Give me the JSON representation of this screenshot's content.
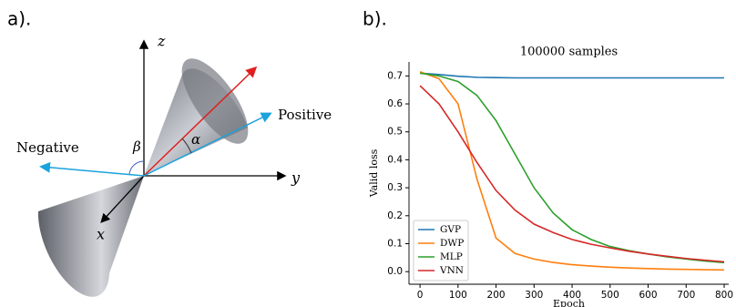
{
  "diagram": {
    "panel_label": "a).",
    "axis_z": "z",
    "axis_y": "y",
    "axis_x": "x",
    "positive": "Positive",
    "negative": "Negative",
    "beta": "β",
    "alpha": "α"
  },
  "chart_panel_label": "b).",
  "chart_data": {
    "type": "line",
    "title": "100000 samples",
    "x_label": "Epoch",
    "y_label": "Valid loss",
    "x": [
      0,
      50,
      100,
      150,
      200,
      250,
      300,
      350,
      400,
      450,
      500,
      550,
      600,
      650,
      700,
      750,
      800
    ],
    "series": [
      {
        "name": "GVP",
        "color": "#1f77b4",
        "values": [
          0.71,
          0.705,
          0.699,
          0.695,
          0.694,
          0.693,
          0.693,
          0.693,
          0.693,
          0.693,
          0.693,
          0.693,
          0.693,
          0.693,
          0.693,
          0.693,
          0.693
        ]
      },
      {
        "name": "DWP",
        "color": "#ff7f0e",
        "values": [
          0.715,
          0.69,
          0.6,
          0.33,
          0.12,
          0.065,
          0.045,
          0.033,
          0.025,
          0.02,
          0.016,
          0.013,
          0.011,
          0.009,
          0.008,
          0.007,
          0.006
        ]
      },
      {
        "name": "MLP",
        "color": "#2ca02c",
        "values": [
          0.71,
          0.7,
          0.68,
          0.63,
          0.54,
          0.42,
          0.3,
          0.21,
          0.15,
          0.115,
          0.09,
          0.075,
          0.063,
          0.053,
          0.045,
          0.038,
          0.032
        ]
      },
      {
        "name": "VNN",
        "color": "#d62728",
        "values": [
          0.665,
          0.6,
          0.5,
          0.39,
          0.29,
          0.22,
          0.17,
          0.14,
          0.115,
          0.098,
          0.085,
          0.073,
          0.063,
          0.055,
          0.047,
          0.041,
          0.035
        ]
      }
    ],
    "xlim": [
      -29,
      812
    ],
    "ylim": [
      -0.045,
      0.75
    ],
    "xticks": [
      0,
      100,
      200,
      300,
      400,
      500,
      600,
      700,
      800
    ],
    "yticks": [
      {
        "value": 0,
        "label": "0.0"
      },
      0.1,
      0.2,
      0.3,
      0.4,
      0.5,
      0.6,
      0.7
    ],
    "legend": "lower left"
  }
}
